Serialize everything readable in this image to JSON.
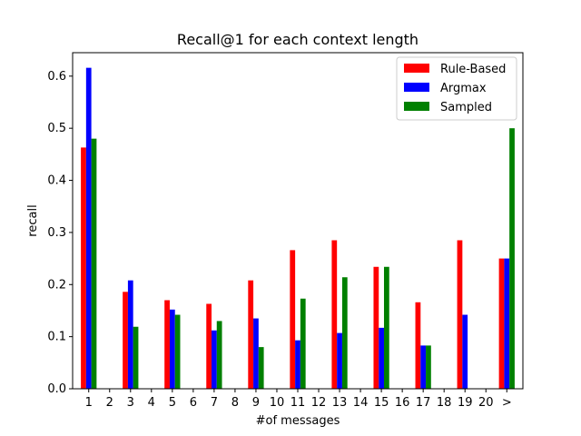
{
  "chart_data": {
    "type": "bar",
    "title": "Recall@1 for each context length",
    "xlabel": "#of messages",
    "ylabel": "recall",
    "ylim": [
      0,
      0.645
    ],
    "yticks": [
      0.0,
      0.1,
      0.2,
      0.3,
      0.4,
      0.5,
      0.6
    ],
    "ytick_labels": [
      "0.0",
      "0.1",
      "0.2",
      "0.3",
      "0.4",
      "0.5",
      "0.6"
    ],
    "categories": [
      "1",
      "2",
      "3",
      "4",
      "5",
      "6",
      "7",
      "8",
      "9",
      "10",
      "11",
      "12",
      "13",
      "14",
      "15",
      "16",
      "17",
      "18",
      "19",
      "20",
      ">"
    ],
    "legend_position": "top-right",
    "series": [
      {
        "name": "Rule-Based",
        "color": "#ff0000",
        "values": [
          0.463,
          0,
          0.186,
          0,
          0.17,
          0,
          0.163,
          0,
          0.208,
          0,
          0.266,
          0,
          0.285,
          0,
          0.234,
          0,
          0.166,
          0,
          0.285,
          0,
          0.25
        ]
      },
      {
        "name": "Argmax",
        "color": "#0000ff",
        "values": [
          0.616,
          0,
          0.208,
          0,
          0.152,
          0,
          0.112,
          0,
          0.135,
          0,
          0.093,
          0,
          0.107,
          0,
          0.117,
          0,
          0.083,
          0,
          0.142,
          0,
          0.25
        ]
      },
      {
        "name": "Sampled",
        "color": "#008000",
        "values": [
          0.48,
          0,
          0.119,
          0,
          0.142,
          0,
          0.13,
          0,
          0.08,
          0,
          0.173,
          0,
          0.214,
          0,
          0.234,
          0,
          0.083,
          0,
          0,
          0,
          0.5
        ]
      }
    ]
  }
}
